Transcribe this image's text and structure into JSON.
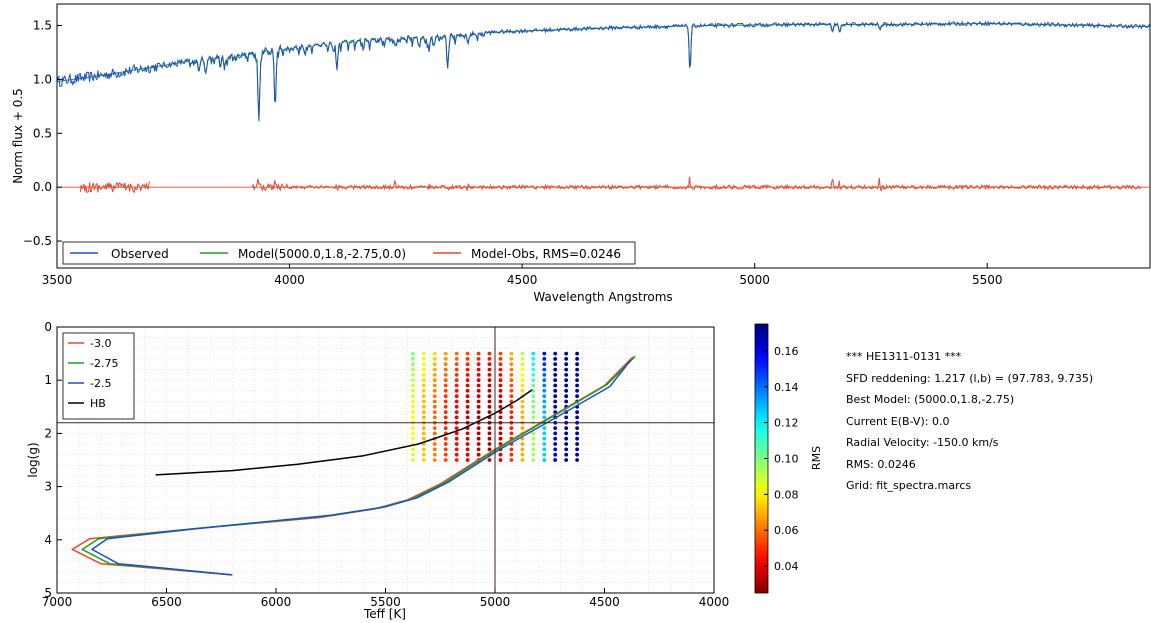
{
  "chart_data": [
    {
      "type": "line",
      "title": "",
      "xlabel": "Wavelength  Angstroms",
      "ylabel": "Norm flux + 0.5",
      "xlim": [
        3500,
        5850
      ],
      "ylim": [
        -0.75,
        1.7
      ],
      "xticks": [
        3500,
        4000,
        4500,
        5000,
        5500
      ],
      "yticks": [
        -0.5,
        0.0,
        0.5,
        1.0,
        1.5
      ],
      "xtick_labels": [
        "3500",
        "4000",
        "4500",
        "5000",
        "5500"
      ],
      "ytick_labels": [
        "−0.5",
        "0.0",
        "0.5",
        "1.0",
        "1.5"
      ],
      "legend_position": "bottom-left",
      "continuum_anchors": {
        "x": [
          3500,
          3600,
          3700,
          3800,
          3900,
          4000,
          4100,
          4200,
          4300,
          4400,
          4500,
          4700,
          4900,
          5100,
          5300,
          5500,
          5850
        ],
        "y": [
          0.98,
          1.04,
          1.11,
          1.18,
          1.24,
          1.3,
          1.35,
          1.38,
          1.4,
          1.43,
          1.45,
          1.48,
          1.5,
          1.51,
          1.51,
          1.52,
          1.49
        ]
      },
      "absorption_lines": [
        {
          "x": 3934,
          "depth": 0.65
        },
        {
          "x": 3969,
          "depth": 0.55
        },
        {
          "x": 3820,
          "depth": 0.12
        },
        {
          "x": 3860,
          "depth": 0.1
        },
        {
          "x": 4102,
          "depth": 0.25
        },
        {
          "x": 4227,
          "depth": 0.08
        },
        {
          "x": 4300,
          "depth": 0.12
        },
        {
          "x": 4340,
          "depth": 0.28
        },
        {
          "x": 4383,
          "depth": 0.07
        },
        {
          "x": 4861,
          "depth": 0.42
        },
        {
          "x": 5167,
          "depth": 0.07
        },
        {
          "x": 5183,
          "depth": 0.08
        },
        {
          "x": 5270,
          "depth": 0.05
        }
      ],
      "residual_segments": [
        [
          3550,
          3700
        ],
        [
          3920,
          5830
        ]
      ],
      "series": [
        {
          "name": "Observed",
          "color": "#1f4fbf"
        },
        {
          "name": "Model(5000.0,1.8,-2.75,0.0)",
          "color": "#22a022"
        },
        {
          "name": "Model-Obs, RMS=0.0246",
          "color": "#e24a33"
        }
      ]
    },
    {
      "type": "scatter",
      "title": "",
      "xlabel": "Teff [K]",
      "ylabel": "log(g)",
      "xlim": [
        7000,
        4000
      ],
      "ylim": [
        5,
        0
      ],
      "xticks": [
        7000,
        6500,
        6000,
        5500,
        5000,
        4500,
        4000
      ],
      "yticks": [
        0,
        1,
        2,
        3,
        4,
        5
      ],
      "xtick_labels": [
        "7000",
        "6500",
        "6000",
        "5500",
        "5000",
        "4500",
        "4000"
      ],
      "ytick_labels": [
        "0",
        "1",
        "2",
        "3",
        "4",
        "5"
      ],
      "crosshair": {
        "teff": 5000,
        "logg": 1.8
      },
      "legend_position": "top-left",
      "grid_points": {
        "teff_range": [
          4625,
          5375
        ],
        "teff_step": 50,
        "logg_range": [
          0.5,
          2.5
        ],
        "logg_step": 0.1,
        "best": {
          "teff": 5000,
          "logg": 1.8
        }
      },
      "isochrones": [
        {
          "name": "-3.0",
          "color": "#e24a33",
          "teff": [
            6200,
            6800,
            6930,
            6850,
            6400,
            5800,
            5550,
            5400,
            5250,
            5000,
            4750,
            4500,
            4370
          ],
          "logg": [
            4.66,
            4.45,
            4.18,
            3.98,
            3.8,
            3.58,
            3.42,
            3.25,
            2.95,
            2.3,
            1.7,
            1.1,
            0.56
          ]
        },
        {
          "name": "-2.75",
          "color": "#22a022",
          "teff": [
            6200,
            6760,
            6885,
            6810,
            6370,
            5775,
            5525,
            5378,
            5230,
            4985,
            4735,
            4488,
            4360
          ],
          "logg": [
            4.66,
            4.45,
            4.18,
            3.98,
            3.79,
            3.56,
            3.4,
            3.23,
            2.93,
            2.28,
            1.68,
            1.08,
            0.55
          ]
        },
        {
          "name": "-2.5",
          "color": "#1f4fbf",
          "teff": [
            6200,
            6720,
            6840,
            6770,
            6340,
            5750,
            5500,
            5356,
            5210,
            4970,
            4720,
            4476,
            4380
          ],
          "logg": [
            4.66,
            4.45,
            4.18,
            3.98,
            3.78,
            3.54,
            3.38,
            3.21,
            2.91,
            2.28,
            1.7,
            1.12,
            0.62
          ]
        },
        {
          "name": "HB",
          "color": "#000000",
          "teff": [
            6550,
            6200,
            5900,
            5600,
            5350,
            5150,
            5000,
            4900,
            4830
          ],
          "logg": [
            2.78,
            2.7,
            2.58,
            2.42,
            2.2,
            1.92,
            1.62,
            1.38,
            1.18
          ]
        }
      ]
    },
    {
      "type": "heatmap",
      "title": "",
      "label": "RMS",
      "range": [
        0.025,
        0.175
      ],
      "ticks": [
        0.04,
        0.06,
        0.08,
        0.1,
        0.12,
        0.14,
        0.16
      ],
      "tick_labels": [
        "0.04",
        "0.06",
        "0.08",
        "0.10",
        "0.12",
        "0.14",
        "0.16"
      ],
      "colormap": "jet_r"
    }
  ],
  "info": [
    "*** HE1311-0131 ***",
    "SFD reddening: 1.217 (l,b) = (97.783, 9.735)",
    "Best Model: (5000.0,1.8,-2.75)",
    "Current E(B-V): 0.0",
    "Radial Velocity: -150.0 km/s",
    "RMS: 0.0246",
    "Grid: fit_spectra.marcs"
  ]
}
